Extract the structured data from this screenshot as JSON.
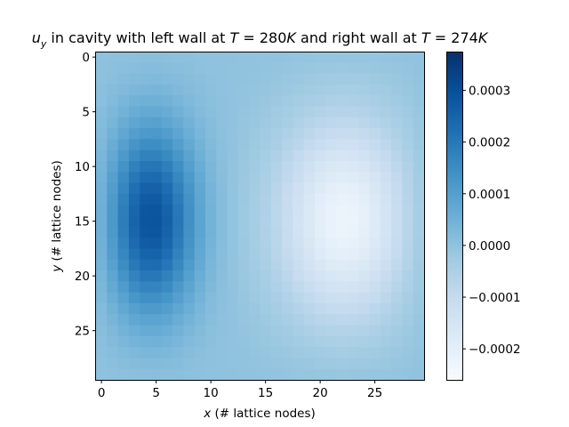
{
  "chart_data": {
    "type": "heatmap",
    "title": {
      "part1": "u",
      "sub": "y",
      "part2": " in cavity with left wall at ",
      "var1": "T",
      "val1": " = 280",
      "unit1": "K",
      "part3": " and right wall at ",
      "var2": "T",
      "val2": " = 274",
      "unit2": "K"
    },
    "xlabel": {
      "var": "x",
      "rest": " (# lattice nodes)"
    },
    "ylabel": {
      "var": "y",
      "rest": " (# lattice nodes)"
    },
    "grid": false,
    "colormap": "Blues",
    "nx": 30,
    "ny": 30,
    "xlim": [
      -0.5,
      29.5
    ],
    "ylim": [
      29.5,
      -0.5
    ],
    "x_ticks": [
      0,
      5,
      10,
      15,
      20,
      25
    ],
    "y_ticks": [
      0,
      5,
      10,
      15,
      20,
      25
    ],
    "colorbar": {
      "min": -0.00026,
      "max": 0.000375,
      "ticks": [
        {
          "value": 0.0003,
          "label": "0.0003"
        },
        {
          "value": 0.0002,
          "label": "0.0002"
        },
        {
          "value": 0.0001,
          "label": "0.0001"
        },
        {
          "value": 0.0,
          "label": "0.0000"
        },
        {
          "value": -0.0001,
          "label": "−0.0001"
        },
        {
          "value": -0.0002,
          "label": "−0.0002"
        }
      ]
    },
    "field_features": {
      "max_value": 0.000375,
      "max_location": [
        4,
        15
      ],
      "min_value": -0.00026,
      "min_location": [
        23,
        15
      ],
      "boundary_value": 0.0
    }
  }
}
